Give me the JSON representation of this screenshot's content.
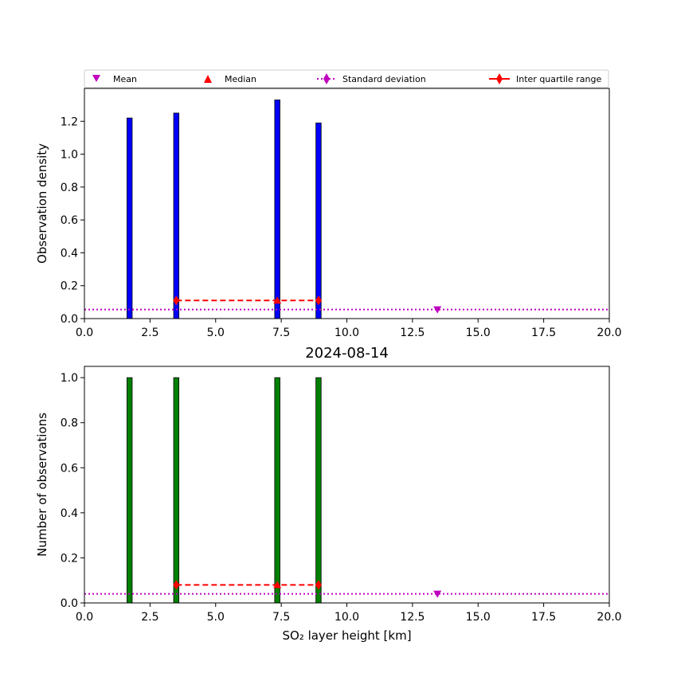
{
  "legend": {
    "entries": [
      {
        "label": "Mean",
        "color": "#bf00bf",
        "marker": "triangle-down-icon"
      },
      {
        "label": "Median",
        "color": "#ff0000",
        "marker": "triangle-up-icon"
      },
      {
        "label": "Standard deviation",
        "color": "#bf00bf",
        "marker": "diamond-dotted-line-icon"
      },
      {
        "label": "Inter quartile range",
        "color": "#ff0000",
        "marker": "diamond-dashed-line-icon"
      }
    ]
  },
  "chart_data": [
    {
      "type": "bar",
      "title": "",
      "xlabel": "",
      "ylabel": "Observation density",
      "xlim": [
        0,
        20
      ],
      "ylim": [
        0,
        1.4
      ],
      "xticks": [
        "0.0",
        "2.5",
        "5.0",
        "7.5",
        "10.0",
        "12.5",
        "15.0",
        "17.5",
        "20.0"
      ],
      "yticks": [
        "0.0",
        "0.2",
        "0.4",
        "0.6",
        "0.8",
        "1.0",
        "1.2"
      ],
      "ytick_values": [
        0,
        0.2,
        0.4,
        0.6,
        0.8,
        1.0,
        1.2
      ],
      "bar_color": "#0000ff",
      "bar_width": 0.2,
      "x": [
        1.72,
        3.5,
        7.35,
        8.92
      ],
      "values": [
        1.22,
        1.25,
        1.33,
        1.19
      ],
      "mean": {
        "x": 13.45,
        "y": 0.055
      },
      "std_dev_level": 0.055,
      "iqr": {
        "x": [
          3.5,
          8.92
        ],
        "y": 0.11
      },
      "median": {
        "x": 7.35,
        "y": 0.11
      }
    },
    {
      "type": "bar",
      "title": "2024-08-14",
      "xlabel": "SO₂ layer height [km]",
      "ylabel": "Number of observations",
      "xlim": [
        0,
        20
      ],
      "ylim": [
        0,
        1.05
      ],
      "xticks": [
        "0.0",
        "2.5",
        "5.0",
        "7.5",
        "10.0",
        "12.5",
        "15.0",
        "17.5",
        "20.0"
      ],
      "yticks": [
        "0.0",
        "0.2",
        "0.4",
        "0.6",
        "0.8",
        "1.0"
      ],
      "ytick_values": [
        0,
        0.2,
        0.4,
        0.6,
        0.8,
        1.0
      ],
      "bar_color": "#008000",
      "bar_width": 0.2,
      "x": [
        1.72,
        3.5,
        7.35,
        8.92
      ],
      "values": [
        1,
        1,
        1,
        1
      ],
      "mean": {
        "x": 13.45,
        "y": 0.04
      },
      "std_dev_level": 0.04,
      "iqr": {
        "x": [
          3.5,
          8.92
        ],
        "y": 0.08
      },
      "median": {
        "x": 7.35,
        "y": 0.08
      }
    }
  ]
}
